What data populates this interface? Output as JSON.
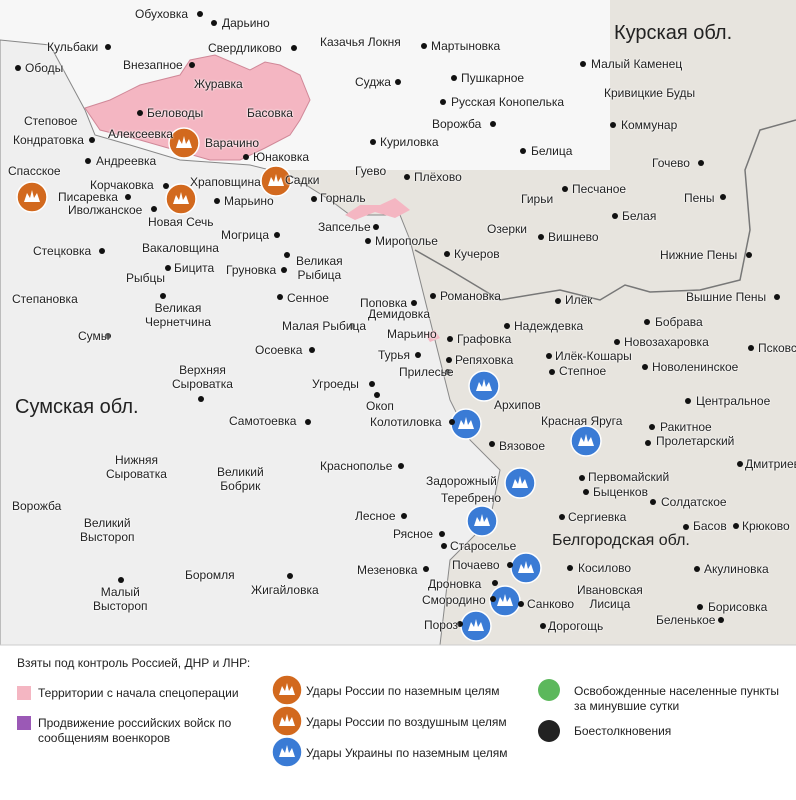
{
  "regions": [
    "Курская обл.",
    "Сумская обл.",
    "Белгородская обл."
  ],
  "places": [
    "Обуховка",
    "Дарьино",
    "Кульбаки",
    "Ободы",
    "Внезапное",
    "Свердликово",
    "Казачья Локня",
    "Мартыновка",
    "Малый Каменец",
    "Журавка",
    "Суджа",
    "Пушкарное",
    "Кривицкие Буды",
    "Беловоды",
    "Басовка",
    "Русская Конопелька",
    "Степовое",
    "Ворожба",
    "Коммунар",
    "Алексеевка",
    "Кондратовка",
    "Варачино",
    "Куриловка",
    "Белица",
    "Юнаковка",
    "Андреевка",
    "Гочево",
    "Спасское",
    "Гуево",
    "Плёхово",
    "Храповщина",
    "Садки",
    "Корчаковка",
    "Песчаное",
    "Писаревка",
    "Горналь",
    "Гирьи",
    "Пены",
    "Марьино",
    "Иволжанское",
    "Белая",
    "Новая Сечь",
    "Запселье",
    "Озерки",
    "Могрица",
    "Вишнево",
    "Мирополье",
    "Вакаловщина",
    "Стецковка",
    "Кучеров",
    "Нижние Пены",
    "Великая Рыбица",
    "Бицита",
    "Груновка",
    "Рыбцы",
    "Романовка",
    "Сенное",
    "Илёк",
    "Вышние Пены",
    "Степановка",
    "Поповка",
    "Великая Чернетчина",
    "Демидовка",
    "Бобрава",
    "Малая Рыбица",
    "Надеждевка",
    "Марьино",
    "Сумы",
    "Графовка",
    "Новозахаровка",
    "Псковское",
    "Осоевка",
    "Турья",
    "Илёк-Кошары",
    "Репяховка",
    "Новоленинское",
    "Верхняя Сыроватка",
    "Степное",
    "Прилесье",
    "Угроеды",
    "Центральное",
    "Архипов",
    "Окоп",
    "Красная Яруга",
    "Самотоевка",
    "Колотиловка",
    "Ракитное",
    "Пролетарский",
    "Вязовое",
    "Нижняя Сыроватка",
    "Дмитриевка",
    "Краснополье",
    "Великий Бобрик",
    "Первомайский",
    "Задорожный",
    "Быценков",
    "Теребрено",
    "Солдатское",
    "Ворожба",
    "Лесное",
    "Сергиевка",
    "Великий Выстороп",
    "Басов",
    "Крюково",
    "Рясное",
    "Староселье",
    "Почаево",
    "Косилово",
    "Акулиновка",
    "Мезеновка",
    "Боромля",
    "Дроновка",
    "Жигайловка",
    "Ивановская Лисица",
    "Малый Выстороп",
    "Смородино",
    "Санково",
    "Борисовка",
    "Беленькое",
    "Пороз",
    "Дорогощь"
  ],
  "legend": {
    "title": "Взяты под контроль Россией, ДНР и ЛНР:",
    "items": [
      "Территории с начала спецоперации",
      "Продвижение российских войск по сообщениям военкоров",
      "Удары России по наземным целям",
      "Удары России по воздушным целям",
      "Удары Украины по наземным целям",
      "Освобожденные населенные пункты за минувшие сутки",
      "Боестолкновения"
    ]
  }
}
